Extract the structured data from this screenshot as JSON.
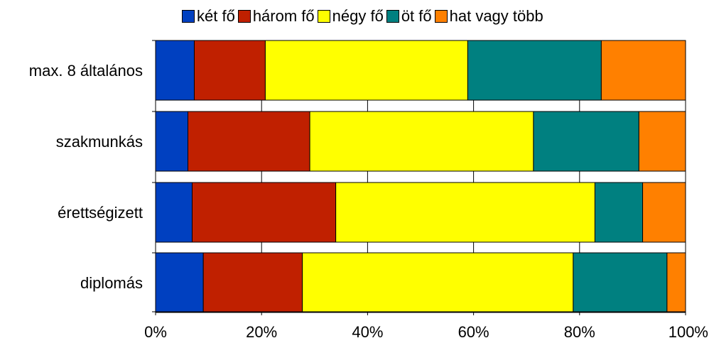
{
  "chart_data": {
    "type": "bar",
    "orientation": "horizontal",
    "stacked": "percent",
    "title": "",
    "xlabel": "",
    "ylabel": "",
    "xlim": [
      0,
      100
    ],
    "x_ticks": [
      "0%",
      "20%",
      "40%",
      "60%",
      "80%",
      "100%"
    ],
    "categories": [
      "max. 8 általános",
      "szakmunkás",
      "érettségizett",
      "diplomás"
    ],
    "legend_position": "top",
    "grid": "vertical",
    "series": [
      {
        "name": "két fő",
        "color": "#0040C0",
        "values": [
          7.3,
          6.1,
          6.9,
          9.0
        ]
      },
      {
        "name": "három fő",
        "color": "#C02000",
        "values": [
          13.4,
          23.0,
          27.1,
          18.7
        ]
      },
      {
        "name": "négy fő",
        "color": "#FFFF00",
        "values": [
          38.2,
          42.2,
          48.9,
          51.1
        ]
      },
      {
        "name": "öt fő",
        "color": "#008080",
        "values": [
          25.2,
          19.9,
          9.0,
          17.7
        ]
      },
      {
        "name": "hat vagy több",
        "color": "#FF8000",
        "values": [
          15.9,
          8.8,
          8.1,
          3.5
        ]
      }
    ]
  }
}
